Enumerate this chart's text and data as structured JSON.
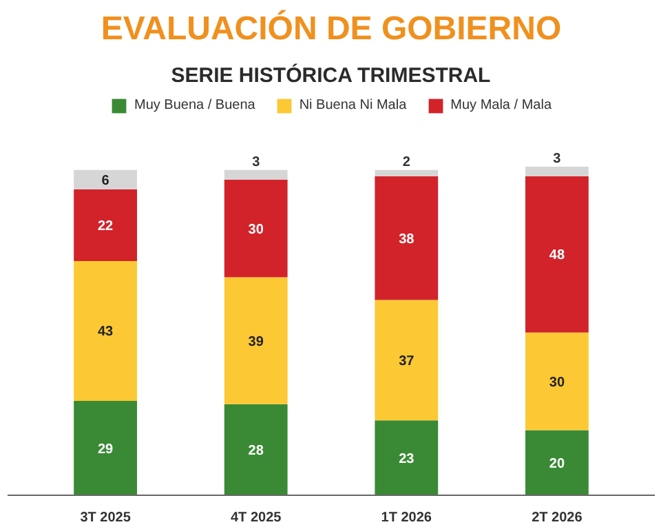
{
  "chart_data": {
    "type": "bar",
    "title": "EVALUACIÓN DE GOBIERNO",
    "subtitle": "SERIE HISTÓRICA TRIMESTRAL",
    "categories": [
      "3T 2025",
      "4T 2025",
      "1T 2026",
      "2T 2026"
    ],
    "stacked": true,
    "data_labels": true,
    "legend": "top",
    "grid": false,
    "series": [
      {
        "name": "Muy Buena / Buena",
        "color": "#3a8a35",
        "values": [
          29,
          28,
          23,
          20
        ]
      },
      {
        "name": "Ni Buena Ni Mala",
        "color": "#fcc934",
        "values": [
          43,
          39,
          37,
          30
        ]
      },
      {
        "name": "Muy Mala / Mala",
        "color": "#d2232a",
        "values": [
          22,
          30,
          38,
          48
        ]
      },
      {
        "color": "#d6d6d6",
        "values": [
          6,
          3,
          2,
          3
        ]
      }
    ]
  }
}
